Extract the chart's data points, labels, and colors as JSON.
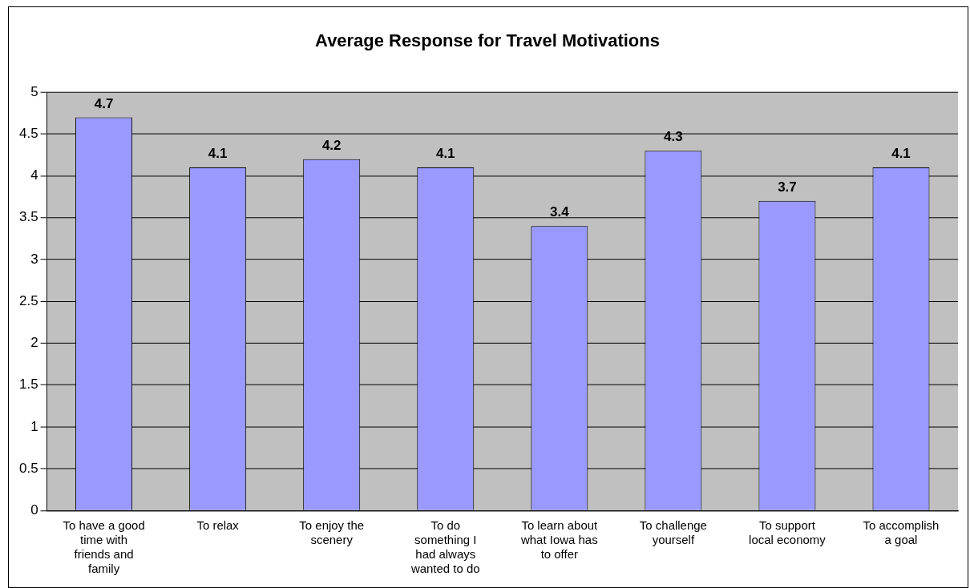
{
  "chart_data": {
    "type": "bar",
    "title": "Average Response for Travel Motivations",
    "categories": [
      "To have a good time with friends and family",
      "To relax",
      "To enjoy the scenery",
      "To do something I had always wanted to do",
      "To learn about what Iowa has to offer",
      "To challenge yourself",
      "To support local economy",
      "To accomplish a goal"
    ],
    "values": [
      4.7,
      4.1,
      4.2,
      4.1,
      3.4,
      4.3,
      3.7,
      4.1
    ],
    "color": "#9999ff",
    "ylim": [
      0,
      5
    ],
    "yticks": [
      0,
      0.5,
      1,
      1.5,
      2,
      2.5,
      3,
      3.5,
      4,
      4.5,
      5
    ],
    "grid": "y",
    "data_labels": true,
    "legend": false
  }
}
